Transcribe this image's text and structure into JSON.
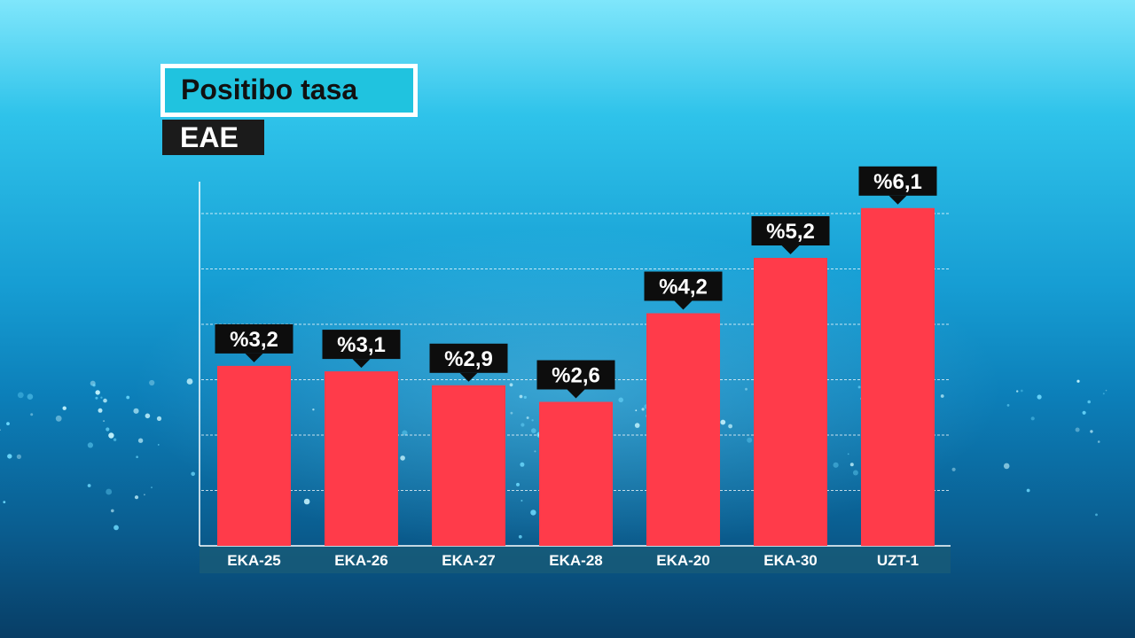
{
  "title": "Positibo tasa",
  "subtitle": "EAE",
  "colors": {
    "bar": "#ff3b4a",
    "label_bg": "#0d0d0d",
    "axis_band": "#175a78"
  },
  "chart_data": {
    "type": "bar",
    "categories": [
      "EKA-25",
      "EKA-26",
      "EKA-27",
      "EKA-28",
      "EKA-20",
      "EKA-30",
      "UZT-1"
    ],
    "values": [
      3.25,
      3.15,
      2.9,
      2.6,
      4.2,
      5.2,
      6.1
    ],
    "data_labels": [
      "%3,2",
      "%3,1",
      "%2,9",
      "%2,6",
      "%4,2",
      "%5,2",
      "%6,1"
    ],
    "title": "Positibo tasa",
    "subtitle": "EAE",
    "ylim": [
      0,
      6.5
    ],
    "grid": true
  }
}
